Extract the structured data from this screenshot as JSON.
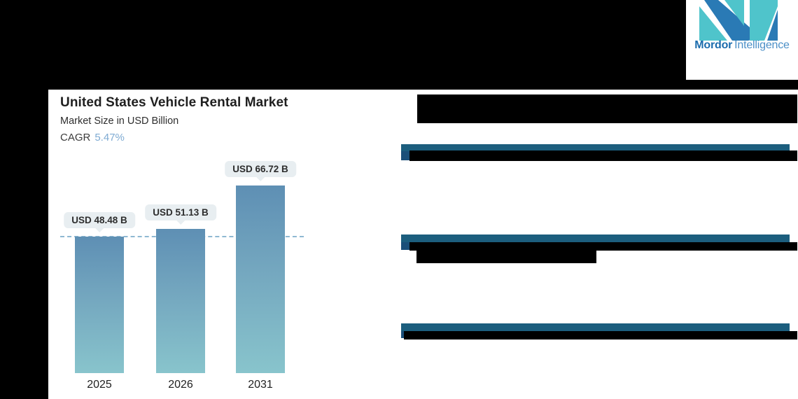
{
  "logo": {
    "brand_bold": "Mordor",
    "brand_light": "Intelligence"
  },
  "chart": {
    "title": "United States Vehicle Rental Market",
    "subtitle": "Market Size in USD Billion",
    "cagr_label": "CAGR",
    "cagr_value": "5.47%"
  },
  "chart_data": {
    "type": "bar",
    "title": "United States Vehicle Rental Market",
    "subtitle": "Market Size in USD Billion",
    "cagr": "5.47%",
    "categories": [
      "2025",
      "2026",
      "2031"
    ],
    "values": [
      48.48,
      51.13,
      66.72
    ],
    "value_labels": [
      "USD 48.48 B",
      "USD 51.13 B",
      "USD 66.72 B"
    ],
    "unit": "USD Billion",
    "ylim": [
      0,
      70
    ],
    "grid": false,
    "legend": "none",
    "reference_line": {
      "style": "dashed",
      "at_value": 48.48,
      "color": "#8fb9d2"
    }
  },
  "colors": {
    "background": "#000000",
    "card": "#ffffff",
    "bar_gradient_top": "#5e8fb4",
    "bar_gradient_bottom": "#88c4cc",
    "value_tag_bg": "#e8eef1",
    "section_divider": "#1c5e7e",
    "cagr_accent": "#7fabd3",
    "logo_teal": "#4fc4cb",
    "logo_blue": "#2a7ab5"
  }
}
